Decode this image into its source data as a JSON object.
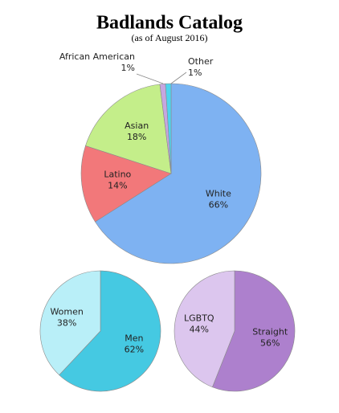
{
  "chart_data": [
    {
      "type": "pie",
      "title": "Badlands Catalog",
      "subtitle": "(as of August 2016)",
      "labels": [
        "White",
        "Latino",
        "Asian",
        "African American",
        "Other"
      ],
      "values": [
        66,
        14,
        18,
        1,
        1
      ],
      "value_labels": [
        "66%",
        "14%",
        "18%",
        "1%",
        "1%"
      ],
      "colors": [
        "#7eb2f2",
        "#f2787a",
        "#c4ee8a",
        "#c6a6e0",
        "#4fd4ee"
      ]
    },
    {
      "type": "pie",
      "labels": [
        "Men",
        "Women"
      ],
      "values": [
        62,
        38
      ],
      "value_labels": [
        "62%",
        "38%"
      ],
      "colors": [
        "#45c9e2",
        "#b9eff8"
      ]
    },
    {
      "type": "pie",
      "labels": [
        "Straight",
        "LGBTQ"
      ],
      "values": [
        56,
        44
      ],
      "value_labels": [
        "56%",
        "44%"
      ],
      "colors": [
        "#ad80cd",
        "#dcc6ee"
      ]
    }
  ]
}
